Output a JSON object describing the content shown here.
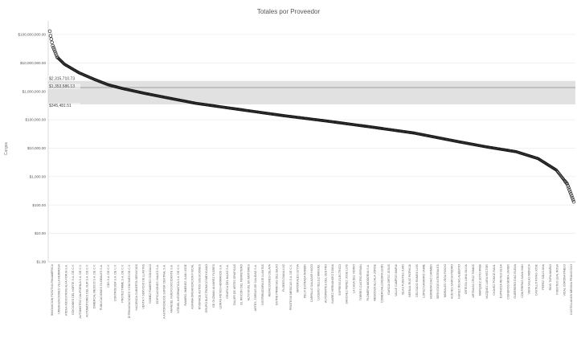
{
  "chart_data": {
    "type": "scatter",
    "title": "Totales por Proveedor",
    "ylabel": "Cargos",
    "y_scale": "log",
    "ylim": [
      1,
      300000000
    ],
    "y_ticks": [
      {
        "value": 100000000,
        "label": "$100,000,000.00"
      },
      {
        "value": 10000000,
        "label": "$10,000,000.00"
      },
      {
        "value": 1000000,
        "label": "$1,000,000.00"
      },
      {
        "value": 100000,
        "label": "$100,000.00"
      },
      {
        "value": 10000,
        "label": "$10,000.00"
      },
      {
        "value": 1000,
        "label": "$1,000.00"
      },
      {
        "value": 100,
        "label": "$100.00"
      },
      {
        "value": 10,
        "label": "$10.00"
      },
      {
        "value": 1,
        "label": "$1.00"
      }
    ],
    "reference_band": {
      "low": 345481.51,
      "high": 2315710.73,
      "line": 1353586.13
    },
    "annotations": [
      "$2,315,710.73",
      "$1,353,586.13",
      "$345,481.51"
    ],
    "point_count": 720,
    "y_curve": [
      {
        "x": 0,
        "y": 130000000
      },
      {
        "x": 1,
        "y": 90000000
      },
      {
        "x": 4,
        "y": 40000000
      },
      {
        "x": 10,
        "y": 16000000
      },
      {
        "x": 20,
        "y": 9000000
      },
      {
        "x": 40,
        "y": 4500000
      },
      {
        "x": 60,
        "y": 2700000
      },
      {
        "x": 80,
        "y": 1700000
      },
      {
        "x": 100,
        "y": 1250000
      },
      {
        "x": 130,
        "y": 850000
      },
      {
        "x": 160,
        "y": 600000
      },
      {
        "x": 200,
        "y": 380000
      },
      {
        "x": 260,
        "y": 230000
      },
      {
        "x": 320,
        "y": 140000
      },
      {
        "x": 380,
        "y": 90000
      },
      {
        "x": 440,
        "y": 56000
      },
      {
        "x": 500,
        "y": 34000
      },
      {
        "x": 560,
        "y": 17000
      },
      {
        "x": 600,
        "y": 11000
      },
      {
        "x": 640,
        "y": 7500
      },
      {
        "x": 670,
        "y": 4300
      },
      {
        "x": 695,
        "y": 1700
      },
      {
        "x": 710,
        "y": 550
      },
      {
        "x": 719,
        "y": 130
      }
    ],
    "categories": [
      "INNOVACION POSITIVA PANAMERICA",
      "URBANIZACIONES VILLA HERMOSA",
      "ATENA INDUSTRIAS ALFA FORJA S.A.",
      "EDICIONES DEL NORTE S.A. DE C.V.",
      "AUTOMOTRIZ CALIFORNIA S.A. DE C.V.",
      "AUTOMOTORES DEL SUR S.A. DE C.V.",
      "DIMERCAL MEXICO S.A. DE C.V.",
      "PUBLICACIONES GLOBALES S.A.",
      "CBS S.A. DE C.V.",
      "CONTROLVER S.A. DE C.V.",
      "PROTECTIRME S.A. DE C.V.",
      "DITRINAGACIONES Y ENCINES DE C.V.",
      "HACIENDA CUBIERTA SERVICIOS",
      "VENTA Y SERVICIO DE LLANTAS",
      "GOMEZ RAMIREZ GONZALO",
      "EDIFICACIONES VIALES S.A.",
      "A AUTORIZADOS SUPER CENTRAL S.A.",
      "ARANDEL NUEVO OCCIDENTE S.A.",
      "NTENEL INFORMATICA S.A. DE C.V.",
      "RAMIRO JIMENEZ JUAN JOSE",
      "ASHIMA ORGANIZACION FISCAL",
      "RIVERADE AUTOS SOLUCIONES",
      "GRUPO ELECTRONICO MEXICANO",
      "DE GUZMAN ALVAREZ FLORES",
      "LEIRAS REYES HERMANOS S.A.",
      "GRAFICA DEL BAJIO S.A.",
      "TALLER DE ARTES GRAFICAS",
      "EL RINCON DEL FERRETERO",
      "ALTO NIVEL EN MOTORES",
      "ARTES, TAREAS DE CALIDAD S.A.",
      "DISTRIBUIDORA DE LLANTAS",
      "REFACCIONES CELAYA",
      "ENTRE PRIMICIAS DEL BAJIO",
      "FLORES DIANA LUZ",
      "PROTESIS MEDICAS S.A. DE C.V.",
      "MATERIALES LEYVA",
      "FELIX ESTRADA RAMON",
      "CARRILLO SALAZAR HUGO",
      "LUCERO TELLEZ MANUEL",
      "AUTOPARTES DEL CENTRO",
      "JUAREZ HERNANDEZ DIANA",
      "EXPRESS ELECTRICO",
      "SANCHEZ PEREZ JOSE LUIS",
      "LA CASA DEL VIDRIO",
      "TORRES CASTRO EFRAIN",
      "PLOMERIA MODERNA S.A.",
      "MENDOZA ALCALA JORGE",
      "COMERCIALIZADORA LEON",
      "GARCIA ORTIZ JESUS",
      "VALLE CAMPOS MARIA",
      "ISLAS FUENTES JUAN",
      "BERNAL RUIZ PATRICIA",
      "DELGADO RAMOS LUIS",
      "LOPEZ NAVARRO JAIME",
      "HERRERA DIAZ CARMEN",
      "SERVICIOS INTEGRALES",
      "MORALES VEGA ROCIO",
      "ACEVES GARCIA PEDRO",
      "NUNEZ ROJAS ALBERTO",
      "ORTEGA LUNA SILVIA",
      "ARTEAGA CRUZ TOMAS",
      "MARQUEZ SOTO IRMA",
      "VAZQUEZ LARA HECTOR",
      "CHAVEZ PONCE RAUL",
      "ESPINOZA REYES OLGA",
      "CISNEROS MORA JAVIER",
      "GUERRERO DIAZ ELENA",
      "CONTRERAS NAVA IVAN",
      "VERA SALAS MONICA",
      "CASTILLO RIVAS JOSE",
      "PEREZ SOLIS ANA",
      "RIOS TAPIA MARIO",
      "FUENTES LEAL ROSA",
      "VIDAL CORONA PABLO",
      "CASTELLANOS MEDINA FRANCISCO"
    ]
  }
}
